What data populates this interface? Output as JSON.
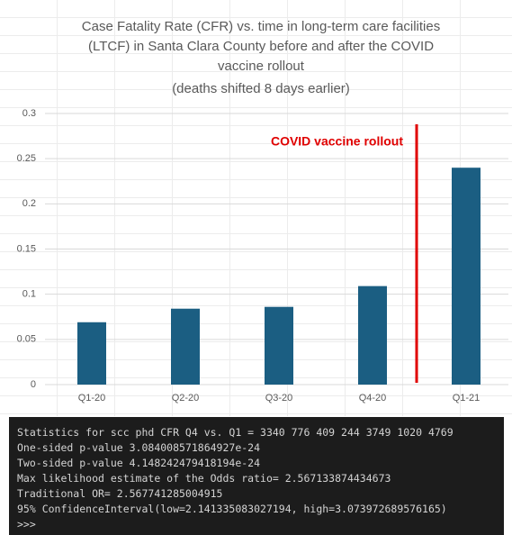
{
  "chart_data": {
    "type": "bar",
    "title": [
      "Case Fatality Rate (CFR) vs. time in long-term care facilities",
      "(LTCF) in Santa Clara County before and after the COVID",
      "vaccine rollout",
      "(deaths shifted 8 days earlier)"
    ],
    "categories": [
      "Q1-20",
      "Q2-20",
      "Q3-20",
      "Q4-20",
      "Q1-21"
    ],
    "values": [
      0.069,
      0.084,
      0.086,
      0.109,
      0.24
    ],
    "color": "#1b5e82",
    "ylim": [
      0,
      0.3
    ],
    "yticks": [
      0,
      0.05,
      0.1,
      0.15,
      0.2,
      0.25,
      0.3
    ],
    "grid": true,
    "annotations": [
      {
        "text": "COVID vaccine rollout",
        "color": "#e00000"
      }
    ]
  },
  "terminal": {
    "lines": [
      "Statistics for scc phd CFR Q4 vs. Q1 = 3340 776 409 244 3749 1020 4769",
      "One-sided p-value 3.084008571864927e-24",
      "Two-sided p-value 4.148242479418194e-24",
      "Max likelihood estimate of the Odds ratio= 2.567133874434673",
      "Traditional OR= 2.567741285004915",
      "95% ConfidenceInterval(low=2.141335083027194, high=3.073972689576165)",
      ">>>"
    ]
  }
}
